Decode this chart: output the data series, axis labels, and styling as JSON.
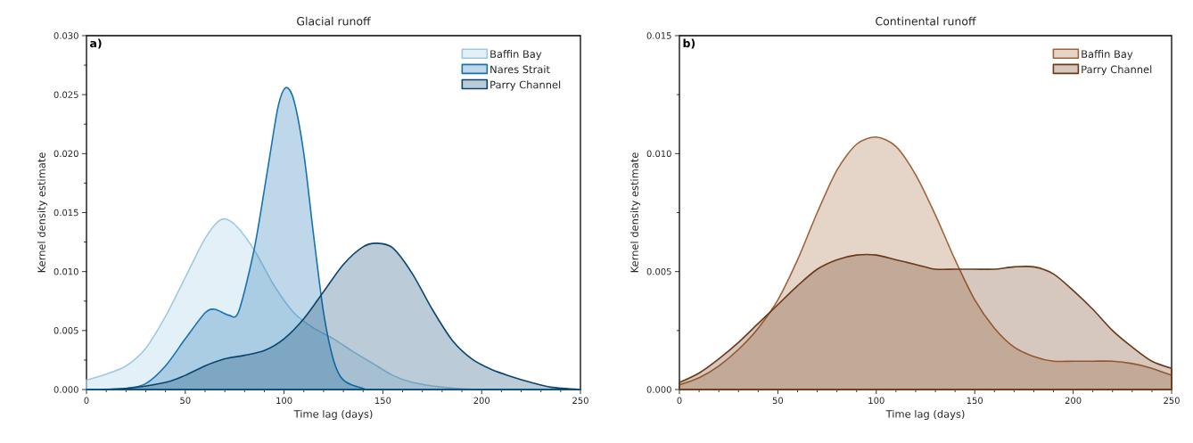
{
  "chart_data": [
    {
      "type": "area",
      "title": "Glacial runoff",
      "xlabel": "Time lag (days)",
      "ylabel": "Kernel density estimate",
      "annotations": [
        "a)"
      ],
      "xlim": [
        0,
        250
      ],
      "ylim": [
        0,
        0.03
      ],
      "xticks": [
        0,
        50,
        100,
        150,
        200,
        250
      ],
      "yticks": [
        {
          "value": 0,
          "label": "0.000"
        },
        {
          "value": 0.005,
          "label": "0.005"
        },
        {
          "value": 0.01,
          "label": "0.010"
        },
        {
          "value": 0.015,
          "label": "0.015"
        },
        {
          "value": 0.02,
          "label": "0.020"
        },
        {
          "value": 0.025,
          "label": "0.025"
        },
        {
          "value": 0.03,
          "label": "0.030"
        }
      ],
      "legend": "top right",
      "grid": false,
      "series": [
        {
          "name": "Baffin Bay",
          "color": "#9ecae1",
          "x": [
            0,
            10,
            20,
            30,
            40,
            50,
            60,
            68,
            75,
            85,
            95,
            105,
            115,
            125,
            135,
            145,
            155,
            165,
            180,
            200,
            250
          ],
          "values": [
            0.0008,
            0.0013,
            0.002,
            0.0035,
            0.0062,
            0.0095,
            0.0128,
            0.0144,
            0.014,
            0.0118,
            0.0088,
            0.0065,
            0.0052,
            0.0043,
            0.0032,
            0.0022,
            0.0012,
            0.0006,
            0.0002,
            0,
            0
          ]
        },
        {
          "name": "Nares Strait",
          "color": "#1672b0",
          "x": [
            0,
            20,
            30,
            40,
            50,
            60,
            65,
            72,
            77,
            85,
            92,
            97,
            101,
            105,
            110,
            115,
            120,
            125,
            130,
            140,
            150,
            250
          ],
          "values": [
            0,
            0.0001,
            0.0005,
            0.002,
            0.0043,
            0.0065,
            0.0068,
            0.0063,
            0.0066,
            0.012,
            0.019,
            0.024,
            0.0256,
            0.0245,
            0.02,
            0.013,
            0.0065,
            0.0025,
            0.0008,
            0.0001,
            0,
            0
          ]
        },
        {
          "name": "Parry Channel",
          "color": "#0b456e",
          "x": [
            0,
            20,
            40,
            50,
            60,
            70,
            80,
            90,
            100,
            110,
            120,
            130,
            140,
            147,
            155,
            165,
            175,
            185,
            195,
            205,
            215,
            225,
            235,
            250
          ],
          "values": [
            0,
            0.0001,
            0.0006,
            0.0012,
            0.002,
            0.0026,
            0.0029,
            0.0033,
            0.0043,
            0.006,
            0.0083,
            0.0106,
            0.0121,
            0.0124,
            0.012,
            0.0098,
            0.0068,
            0.0042,
            0.0026,
            0.0017,
            0.0011,
            0.0006,
            0.0002,
            0
          ]
        }
      ]
    },
    {
      "type": "area",
      "title": "Continental runoff",
      "xlabel": "Time lag (days)",
      "ylabel": "Kernel density estimate",
      "annotations": [
        "b)"
      ],
      "xlim": [
        0,
        250
      ],
      "ylim": [
        0,
        0.015
      ],
      "xticks": [
        0,
        50,
        100,
        150,
        200,
        250
      ],
      "yticks": [
        {
          "value": 0,
          "label": "0.000"
        },
        {
          "value": 0.005,
          "label": "0.005"
        },
        {
          "value": 0.01,
          "label": "0.010"
        },
        {
          "value": 0.015,
          "label": "0.015"
        }
      ],
      "legend": "top right",
      "grid": false,
      "series": [
        {
          "name": "Baffin Bay",
          "color": "#a0643a",
          "x": [
            0,
            10,
            20,
            30,
            40,
            50,
            60,
            70,
            80,
            90,
            100,
            110,
            120,
            130,
            140,
            150,
            160,
            170,
            180,
            190,
            200,
            210,
            220,
            230,
            240,
            250
          ],
          "values": [
            0.0002,
            0.0005,
            0.001,
            0.0017,
            0.0026,
            0.0038,
            0.0055,
            0.0075,
            0.0093,
            0.0104,
            0.0107,
            0.0103,
            0.0091,
            0.0074,
            0.0055,
            0.0038,
            0.0026,
            0.0018,
            0.0014,
            0.0012,
            0.0012,
            0.0012,
            0.0012,
            0.0011,
            0.0009,
            0.0006
          ]
        },
        {
          "name": "Parry Channel",
          "color": "#6b3818",
          "x": [
            0,
            10,
            20,
            30,
            40,
            50,
            60,
            70,
            80,
            90,
            100,
            110,
            120,
            130,
            140,
            150,
            160,
            170,
            180,
            190,
            200,
            210,
            220,
            230,
            240,
            250
          ],
          "values": [
            0.0003,
            0.0007,
            0.0013,
            0.002,
            0.0028,
            0.0036,
            0.0044,
            0.0051,
            0.0055,
            0.0057,
            0.0057,
            0.0055,
            0.0053,
            0.0051,
            0.0051,
            0.0051,
            0.0051,
            0.0052,
            0.0052,
            0.0049,
            0.0042,
            0.0034,
            0.0025,
            0.0018,
            0.0012,
            0.0009
          ]
        }
      ]
    }
  ]
}
